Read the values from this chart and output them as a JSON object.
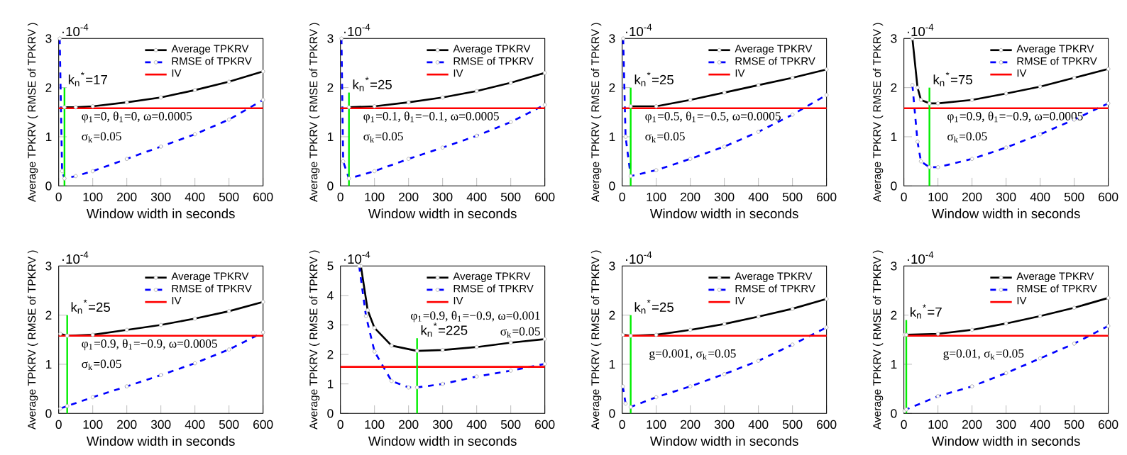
{
  "chart_data": [
    {
      "type": "line",
      "xlabel": "Window width in seconds",
      "ylabel": "Average TPKRV ( RMSE of TPKRV )",
      "xlim": [
        0,
        600
      ],
      "ylim": [
        0,
        3
      ],
      "xticks": [
        0,
        100,
        200,
        300,
        400,
        500,
        600
      ],
      "yticks": [
        0,
        1,
        2,
        3
      ],
      "legend": "top",
      "marker": "circle",
      "series": [
        {
          "name": "Average TPKRV",
          "color": "#000000",
          "x": [
            17,
            50,
            100,
            200,
            300,
            400,
            500,
            600
          ],
          "values": [
            1.6,
            1.6,
            1.62,
            1.7,
            1.8,
            1.95,
            2.12,
            2.33
          ]
        },
        {
          "name": "RMSE of TPKRV",
          "color": "#0000ff",
          "line_style": "dashed",
          "x": [
            3,
            10,
            17,
            50,
            100,
            200,
            300,
            400,
            500,
            600
          ],
          "values": [
            3,
            0.3,
            0.15,
            0.2,
            0.3,
            0.55,
            0.8,
            1.05,
            1.35,
            1.75
          ]
        },
        {
          "name": "IV",
          "color": "#ff0000",
          "marker": "none",
          "x": [
            0,
            600
          ],
          "values": [
            1.58,
            1.58
          ]
        },
        {
          "color": "#00ee00",
          "marker": "none",
          "x": [
            17,
            17
          ],
          "values": [
            0,
            2
          ]
        }
      ],
      "annotations": [
        "·10$^{-4}$",
        {
          "text": "k$_{n}$$^{*}$=17",
          "x": 17,
          "y": 2
        },
        "φ$_{1}$=0, θ$_{1}$=0, ω=0.0005",
        "σ$_{k}$=0.05"
      ]
    },
    {
      "type": "line",
      "xlabel": "Window width in seconds",
      "ylabel": "Average TPKRV ( RMSE of TPKRV )",
      "xlim": [
        0,
        600
      ],
      "ylim": [
        0,
        3
      ],
      "xticks": [
        0,
        100,
        200,
        300,
        400,
        500,
        600
      ],
      "yticks": [
        0,
        1,
        2,
        3
      ],
      "legend": "top",
      "marker": "circle",
      "series": [
        {
          "name": "Average TPKRV",
          "color": "#000000",
          "x": [
            25,
            100,
            200,
            300,
            400,
            500,
            600
          ],
          "values": [
            1.6,
            1.62,
            1.7,
            1.8,
            1.93,
            2.1,
            2.3
          ]
        },
        {
          "name": "RMSE of TPKRV",
          "color": "#0000ff",
          "line_style": "dashed",
          "x": [
            3,
            8,
            25,
            100,
            200,
            300,
            400,
            500,
            600
          ],
          "values": [
            3,
            0.5,
            0.15,
            0.3,
            0.55,
            0.78,
            1.02,
            1.3,
            1.65
          ]
        },
        {
          "name": "IV",
          "color": "#ff0000",
          "marker": "none",
          "x": [
            0,
            600
          ],
          "values": [
            1.58,
            1.58
          ]
        },
        {
          "color": "#00ee00",
          "marker": "none",
          "x": [
            25,
            25
          ],
          "values": [
            0,
            1.9
          ]
        }
      ],
      "annotations": [
        "·10$^{-4}$",
        {
          "text": "k$_{n}$$^{*}$=25",
          "x": 25,
          "y": 1.9
        },
        "φ$_{1}$=0.1, θ$_{1}$=−0.1, ω=0.0005",
        "σ$_{k}$=0.05"
      ]
    },
    {
      "type": "line",
      "xlabel": "Window width in seconds",
      "ylabel": "Average TPKRV ( RMSE of TPKRV )",
      "xlim": [
        0,
        600
      ],
      "ylim": [
        0,
        3
      ],
      "xticks": [
        0,
        100,
        200,
        300,
        400,
        500,
        600
      ],
      "yticks": [
        0,
        1,
        2,
        3
      ],
      "legend": "top",
      "marker": "circle",
      "series": [
        {
          "name": "Average TPKRV",
          "color": "#000000",
          "x": [
            25,
            100,
            200,
            300,
            400,
            500,
            600
          ],
          "values": [
            1.62,
            1.62,
            1.75,
            1.9,
            2.05,
            2.2,
            2.37
          ]
        },
        {
          "name": "RMSE of TPKRV",
          "color": "#0000ff",
          "line_style": "dashed",
          "x": [
            3,
            10,
            25,
            100,
            200,
            300,
            400,
            500,
            600
          ],
          "values": [
            3,
            1,
            0.2,
            0.32,
            0.55,
            0.8,
            1.1,
            1.45,
            1.85
          ]
        },
        {
          "name": "IV",
          "color": "#ff0000",
          "marker": "none",
          "x": [
            0,
            600
          ],
          "values": [
            1.58,
            1.58
          ]
        },
        {
          "color": "#00ee00",
          "marker": "none",
          "x": [
            25,
            25
          ],
          "values": [
            0,
            2
          ]
        }
      ],
      "annotations": [
        "·10$^{-4}$",
        {
          "text": "k$_{n}$$^{*}$=25",
          "x": 25,
          "y": 2
        },
        "φ$_{1}$=0.5, θ$_{1}$=−0.5, ω=0.0005",
        "σ$_{k}$=0.05"
      ]
    },
    {
      "type": "line",
      "xlabel": "Window width in seconds",
      "ylabel": "Average TPKRV ( RMSE of TPKRV )",
      "xlim": [
        0,
        600
      ],
      "ylim": [
        0,
        3
      ],
      "xticks": [
        0,
        100,
        200,
        300,
        400,
        500,
        600
      ],
      "yticks": [
        0,
        1,
        2,
        3
      ],
      "legend": "top",
      "marker": "circle",
      "series": [
        {
          "name": "Average TPKRV",
          "color": "#000000",
          "x": [
            25,
            40,
            50,
            75,
            100,
            200,
            300,
            400,
            500,
            600
          ],
          "values": [
            3,
            2,
            1.75,
            1.68,
            1.68,
            1.75,
            1.88,
            2.02,
            2.2,
            2.38
          ]
        },
        {
          "name": "RMSE of TPKRV",
          "color": "#0000ff",
          "line_style": "dashed",
          "x": [
            25,
            40,
            50,
            75,
            100,
            200,
            300,
            400,
            500,
            600
          ],
          "values": [
            2.05,
            0.9,
            0.5,
            0.38,
            0.38,
            0.55,
            0.78,
            1.05,
            1.35,
            1.68
          ]
        },
        {
          "name": "IV",
          "color": "#ff0000",
          "marker": "none",
          "x": [
            0,
            600
          ],
          "values": [
            1.58,
            1.58
          ]
        },
        {
          "color": "#00ee00",
          "marker": "none",
          "x": [
            75,
            75
          ],
          "values": [
            0,
            2
          ]
        }
      ],
      "annotations": [
        "·10$^{-4}$",
        {
          "text": "k$_{n}$$^{*}$=75",
          "x": 75,
          "y": 2
        },
        "φ$_{1}$=0.9, θ$_{1}$=−0.9, ω=0.0005",
        "σ$_{k}$=0.05"
      ]
    },
    {
      "type": "line",
      "xlabel": "Window width in seconds",
      "ylabel": "Average TPKRV ( RMSE of TPKRV )",
      "xlim": [
        0,
        600
      ],
      "ylim": [
        0,
        3
      ],
      "xticks": [
        0,
        100,
        200,
        300,
        400,
        500,
        600
      ],
      "yticks": [
        0,
        1,
        2,
        3
      ],
      "legend": "top",
      "marker": "circle",
      "series": [
        {
          "name": "Average TPKRV",
          "color": "#000000",
          "x": [
            5,
            25,
            100,
            200,
            300,
            400,
            500,
            600
          ],
          "values": [
            1.62,
            1.58,
            1.6,
            1.7,
            1.8,
            1.93,
            2.08,
            2.27
          ]
        },
        {
          "name": "RMSE of TPKRV",
          "color": "#0000ff",
          "line_style": "dashed",
          "x": [
            5,
            25,
            100,
            200,
            300,
            400,
            500,
            600
          ],
          "values": [
            0.1,
            0.15,
            0.33,
            0.55,
            0.78,
            1.02,
            1.3,
            1.65
          ]
        },
        {
          "name": "IV",
          "color": "#ff0000",
          "marker": "none",
          "x": [
            0,
            600
          ],
          "values": [
            1.58,
            1.58
          ]
        },
        {
          "color": "#00ee00",
          "marker": "none",
          "x": [
            25,
            25
          ],
          "values": [
            0,
            2
          ]
        }
      ],
      "annotations": [
        "·10$^{-4}$",
        {
          "text": "k$_{n}$$^{*}$=25",
          "x": 25,
          "y": 2
        },
        "φ$_{1}$=0.9, θ$_{1}$=−0.9, ω=0.0005",
        "σ$_{k}$=0.05"
      ]
    },
    {
      "type": "line",
      "xlabel": "Window width in seconds",
      "ylabel": "Average TPKRV ( RMSE of TPKRV )",
      "xlim": [
        0,
        600
      ],
      "ylim": [
        0,
        5
      ],
      "xticks": [
        0,
        100,
        200,
        300,
        400,
        500,
        600
      ],
      "yticks": [
        0,
        1,
        2,
        3,
        4,
        5
      ],
      "legend": "top",
      "marker": "circle",
      "series": [
        {
          "name": "Average TPKRV",
          "color": "#000000",
          "x": [
            60,
            80,
            100,
            150,
            225,
            300,
            400,
            500,
            600
          ],
          "values": [
            5,
            3.5,
            2.9,
            2.3,
            2.12,
            2.15,
            2.25,
            2.4,
            2.52
          ]
        },
        {
          "name": "RMSE of TPKRV",
          "color": "#0000ff",
          "line_style": "dashed",
          "x": [
            55,
            75,
            100,
            150,
            200,
            225,
            300,
            400,
            500,
            600
          ],
          "values": [
            5,
            3.3,
            2.1,
            1.1,
            0.88,
            0.88,
            1.0,
            1.25,
            1.45,
            1.68
          ]
        },
        {
          "name": "IV",
          "color": "#ff0000",
          "marker": "none",
          "x": [
            0,
            600
          ],
          "values": [
            1.58,
            1.58
          ]
        },
        {
          "color": "#00ee00",
          "marker": "none",
          "x": [
            225,
            225
          ],
          "values": [
            0,
            2.55
          ]
        }
      ],
      "annotations": [
        "·10$^{-4}$",
        {
          "text": "k$_{n}$$^{*}$=225",
          "x": 225,
          "y": 2.55
        },
        "φ$_{1}$=0.9, θ$_{1}$=−0.9, ω=0.001",
        "σ$_{k}$=0.05"
      ]
    },
    {
      "type": "line",
      "xlabel": "Window width in seconds",
      "ylabel": "Average TPKRV ( RMSE of TPKRV )",
      "xlim": [
        0,
        600
      ],
      "ylim": [
        0,
        3
      ],
      "xticks": [
        0,
        100,
        200,
        300,
        400,
        500,
        600
      ],
      "yticks": [
        0,
        1,
        2,
        3
      ],
      "legend": "top",
      "marker": "circle",
      "series": [
        {
          "name": "Average TPKRV",
          "color": "#000000",
          "x": [
            2,
            25,
            100,
            200,
            300,
            400,
            500,
            600
          ],
          "values": [
            1.6,
            1.58,
            1.6,
            1.7,
            1.82,
            1.97,
            2.13,
            2.33
          ]
        },
        {
          "name": "RMSE of TPKRV",
          "color": "#0000ff",
          "line_style": "dashed",
          "x": [
            2,
            10,
            25,
            100,
            200,
            300,
            400,
            500,
            600
          ],
          "values": [
            0.55,
            0.2,
            0.13,
            0.33,
            0.55,
            0.8,
            1.07,
            1.4,
            1.75
          ]
        },
        {
          "name": "IV",
          "color": "#ff0000",
          "marker": "none",
          "x": [
            0,
            600
          ],
          "values": [
            1.58,
            1.58
          ]
        },
        {
          "color": "#00ee00",
          "marker": "none",
          "x": [
            25,
            25
          ],
          "values": [
            0,
            2
          ]
        }
      ],
      "annotations": [
        "·10$^{-4}$",
        {
          "text": "k$_{n}$$^{*}$=25",
          "x": 25,
          "y": 2
        },
        "g=0.001, σ$_{k}$=0.05"
      ]
    },
    {
      "type": "line",
      "xlabel": "Window width in seconds",
      "ylabel": "Average TPKRV ( RMSE of TPKRV )",
      "xlim": [
        0,
        600
      ],
      "ylim": [
        0,
        3
      ],
      "xticks": [
        0,
        100,
        200,
        300,
        400,
        500,
        600
      ],
      "yticks": [
        0,
        1,
        2,
        3
      ],
      "legend": "top",
      "marker": "circle",
      "series": [
        {
          "name": "Average TPKRV",
          "color": "#000000",
          "x": [
            2,
            7,
            100,
            200,
            300,
            400,
            500,
            600
          ],
          "values": [
            1.6,
            1.6,
            1.62,
            1.7,
            1.83,
            1.98,
            2.15,
            2.35
          ]
        },
        {
          "name": "RMSE of TPKRV",
          "color": "#0000ff",
          "line_style": "dashed",
          "x": [
            2,
            7,
            100,
            200,
            300,
            400,
            500,
            600
          ],
          "values": [
            0.05,
            0.08,
            0.35,
            0.55,
            0.82,
            1.12,
            1.42,
            1.78
          ]
        },
        {
          "name": "IV",
          "color": "#ff0000",
          "marker": "none",
          "x": [
            0,
            600
          ],
          "values": [
            1.58,
            1.58
          ]
        },
        {
          "color": "#00ee00",
          "marker": "none",
          "x": [
            7,
            7
          ],
          "values": [
            0,
            1.9
          ]
        }
      ],
      "annotations": [
        "·10$^{-4}$",
        {
          "text": "k$_{n}$$^{*}$=7",
          "x": 7,
          "y": 1.9
        },
        "g=0.01, σ$_{k}$=0.05"
      ]
    }
  ]
}
